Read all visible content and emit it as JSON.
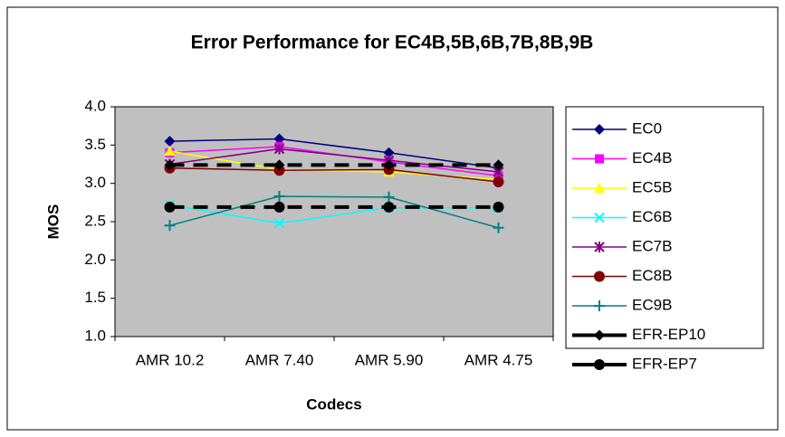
{
  "chart_data": {
    "type": "line",
    "title": "Error Performance for EC4B,5B,6B,7B,8B,9B",
    "x_label": "Codecs",
    "y_label": "MOS",
    "categories": [
      "AMR 10.2",
      "AMR 7.40",
      "AMR 5.90",
      "AMR 4.75"
    ],
    "ylim": [
      1,
      4
    ],
    "yticks": [
      {
        "value": 1,
        "label": "1.0"
      },
      1.5,
      {
        "value": 2,
        "label": "2.0"
      },
      2.5,
      {
        "value": 3,
        "label": "3.0"
      },
      3.5,
      {
        "value": 4,
        "label": "4.0"
      }
    ],
    "grid": false,
    "legend": "right",
    "series": [
      {
        "name": "EC0",
        "color": "#000080",
        "marker": "diamond",
        "values": [
          3.55,
          3.58,
          3.4,
          3.2
        ]
      },
      {
        "name": "EC4B",
        "color": "#FF00FF",
        "marker": "square",
        "values": [
          3.4,
          3.48,
          3.28,
          3.1
        ]
      },
      {
        "name": "EC5B",
        "color": "#FFFF00",
        "marker": "triangle",
        "values": [
          3.42,
          3.18,
          3.15,
          3.05
        ]
      },
      {
        "name": "EC6B",
        "color": "#00FFFF",
        "marker": "x",
        "values": [
          2.72,
          2.48,
          2.68,
          2.68
        ]
      },
      {
        "name": "EC7B",
        "color": "#800080",
        "marker": "star",
        "values": [
          3.25,
          3.45,
          3.3,
          3.15
        ]
      },
      {
        "name": "EC8B",
        "color": "#800000",
        "marker": "circle",
        "values": [
          3.2,
          3.17,
          3.18,
          3.02
        ]
      },
      {
        "name": "EC9B",
        "color": "#008080",
        "marker": "plus",
        "values": [
          2.45,
          2.83,
          2.82,
          2.42
        ]
      },
      {
        "name": "EFR-EP10",
        "color": "#000000",
        "marker": "diamond",
        "dashed": true,
        "values": [
          3.24,
          3.24,
          3.24,
          3.24
        ]
      },
      {
        "name": "EFR-EP7",
        "color": "#000000",
        "marker": "circle",
        "dashed": true,
        "values": [
          2.69,
          2.69,
          2.69,
          2.69
        ]
      }
    ]
  }
}
